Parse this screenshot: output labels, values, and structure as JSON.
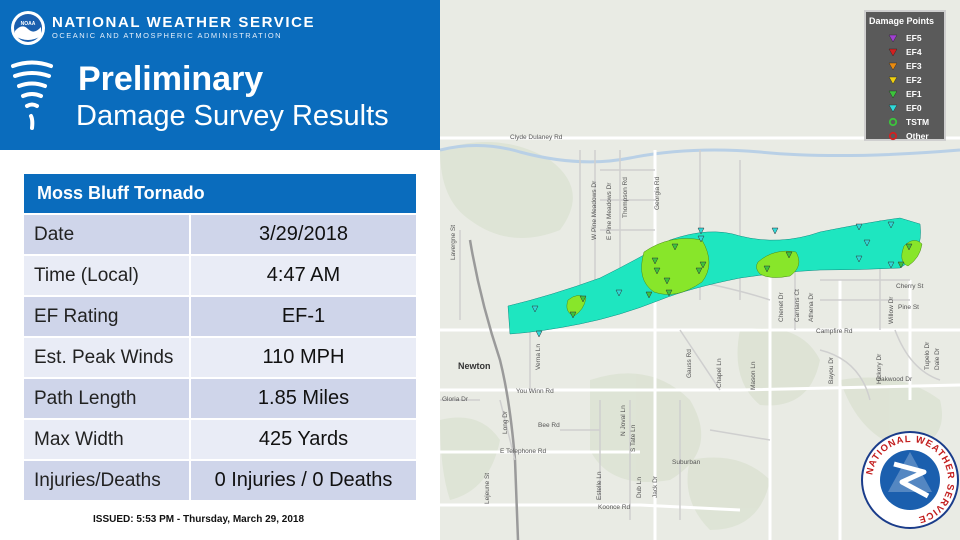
{
  "header": {
    "org_name": "NATIONAL WEATHER SERVICE",
    "org_subtitle": "OCEANIC AND ATMOSPHERIC ADMINISTRATION",
    "title_line1": "Preliminary",
    "title_line2": "Damage Survey Results",
    "noaa_logo_text": "NOAA"
  },
  "table": {
    "title": "Moss Bluff Tornado",
    "rows": [
      {
        "label": "Date",
        "value": "3/29/2018"
      },
      {
        "label": "Time (Local)",
        "value": "4:47 AM"
      },
      {
        "label": "EF Rating",
        "value": "EF-1"
      },
      {
        "label": "Est. Peak Winds",
        "value": "110 MPH"
      },
      {
        "label": "Path Length",
        "value": "1.85 Miles"
      },
      {
        "label": "Max Width",
        "value": "425 Yards"
      },
      {
        "label": "Injuries/Deaths",
        "value": "0 Injuries / 0 Deaths"
      }
    ]
  },
  "issued": "ISSUED: 5:53 PM - Thursday, March 29, 2018",
  "map": {
    "legend": {
      "title": "Damage Points",
      "items": [
        {
          "label": "EF5",
          "color": "#a040d0",
          "shape": "triangle"
        },
        {
          "label": "EF4",
          "color": "#d22020",
          "shape": "triangle"
        },
        {
          "label": "EF3",
          "color": "#e88a10",
          "shape": "triangle"
        },
        {
          "label": "EF2",
          "color": "#f0d010",
          "shape": "triangle"
        },
        {
          "label": "EF1",
          "color": "#3cc43c",
          "shape": "triangle"
        },
        {
          "label": "EF0",
          "color": "#30d8d8",
          "shape": "triangle"
        },
        {
          "label": "TSTM",
          "color": "#3cc43c",
          "shape": "circle"
        },
        {
          "label": "Other",
          "color": "#d22020",
          "shape": "circle"
        }
      ]
    },
    "colors": {
      "ef0_swath": "#1ee6c0",
      "ef1_swath": "#88e62a"
    },
    "city": "Newton",
    "roads": {
      "clyde": "Clyde Dulaney Rd",
      "w_pine_meadows": "W Pine Meadows Dr",
      "e_pine_meadows": "E Pine Meadows Dr",
      "thompson": "Thompson Rd",
      "georgia": "Georgia Rd",
      "lavergne": "Lavergne St",
      "verna": "Verna Ln",
      "you_winn": "You Winn Rd",
      "gloria": "Gloria Dr",
      "long": "Long Dr",
      "bee": "Bee Rd",
      "n_joval": "N Joval Ln",
      "s_tate": "S Tate Ln",
      "e_telephone": "E Telephone Rd",
      "lejeune": "Lejeune St",
      "estelle": "Estelle Ln",
      "dub": "Dub Ln",
      "jack": "Jack Dr",
      "koonce": "Koonce Rd",
      "suburban": "Suburban",
      "chapel": "Chapel Ln",
      "mason": "Mason Ln",
      "gauss": "Gauss Rd",
      "chenet": "Chenet Dr",
      "carrians": "Carrians Ct",
      "athena": "Athena Dr",
      "campfire": "Campfire Rd",
      "cherry": "Cherry St",
      "pine": "Pine St",
      "willow": "Willow Dr",
      "oakwood": "Oakwood Dr",
      "bayou": "Bayou Dr",
      "hickory": "Hickory Dr",
      "tupelo": "Tupelo Dr",
      "dale": "Dale Dr"
    },
    "nws_logo_text": "NATIONAL WEATHER SERVICE"
  }
}
